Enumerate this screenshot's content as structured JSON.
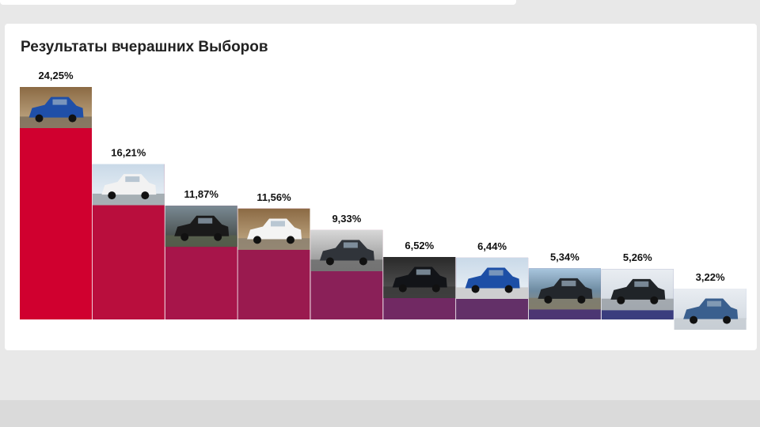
{
  "chart_data": {
    "type": "bar",
    "title": "Результаты вчерашних Выборов",
    "value_labels": [
      "24,25%",
      "16,21%",
      "11,87%",
      "11,56%",
      "9,33%",
      "6,52%",
      "6,44%",
      "5,34%",
      "5,26%",
      "3,22%"
    ],
    "values": [
      24.25,
      16.21,
      11.87,
      11.56,
      9.33,
      6.52,
      6.44,
      5.34,
      5.26,
      3.22
    ],
    "bar_colors": [
      "#d0002f",
      "#b90e3d",
      "#a7154a",
      "#9a1a4f",
      "#8a2058",
      "#712963",
      "#633068",
      "#4c3673",
      "#3a3d7e",
      "#23519a"
    ],
    "bar_images": [
      "blue-sedan-photo",
      "white-hatchback-photo",
      "black-sedan-road-photo",
      "white-sedan-photo",
      "dark-suv-photo",
      "black-sedan-front-photo",
      "blue-car-rear-photo",
      "dark-crossover-photo",
      "dark-hatchback-photo",
      "blue-suv-photo"
    ],
    "grid": false,
    "legend": "none",
    "axes_visible": false
  }
}
